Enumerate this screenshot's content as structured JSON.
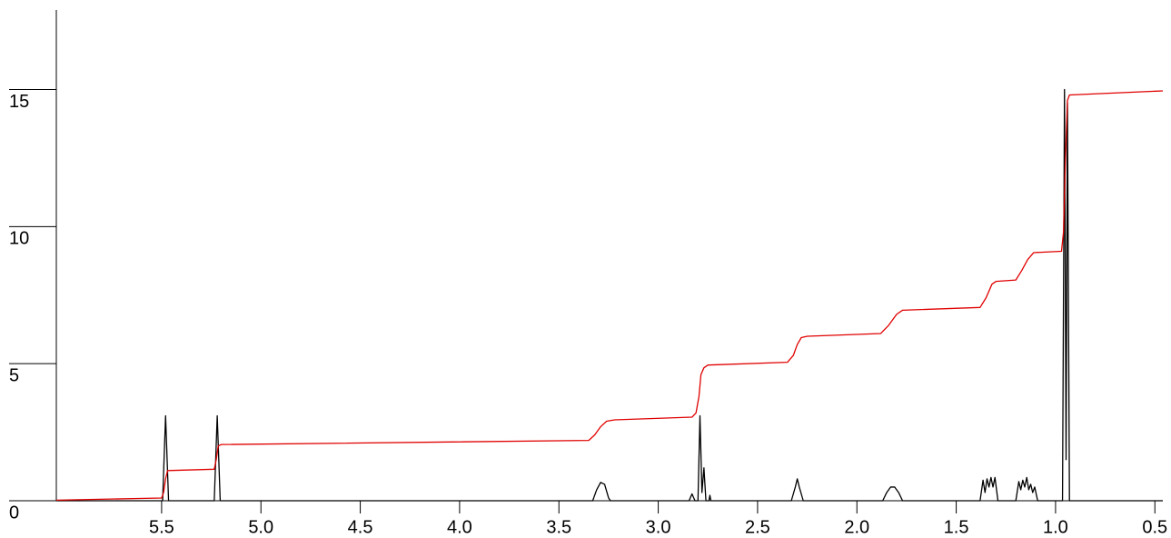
{
  "chart_data": {
    "type": "line",
    "xlim": [
      6.03,
      0.46
    ],
    "ylim": [
      0,
      17.9
    ],
    "xticks": [
      5.5,
      {
        "value": 5,
        "label": "5.0"
      },
      4.5,
      {
        "value": 4,
        "label": "4.0"
      },
      3.5,
      {
        "value": 3,
        "label": "3.0"
      },
      2.5,
      {
        "value": 2,
        "label": "2.0"
      },
      1.5,
      {
        "value": 1,
        "label": "1.0"
      },
      0.5
    ],
    "yticks": [
      0,
      5,
      10,
      15
    ],
    "series": [
      {
        "color": "#000000",
        "x": [
          6.03,
          5.495,
          5.48,
          5.465,
          5.235,
          5.22,
          5.205,
          3.33,
          3.31,
          3.29,
          3.27,
          3.25,
          3.24,
          2.845,
          2.83,
          2.815,
          2.8,
          2.79,
          2.78,
          2.77,
          2.76,
          2.745,
          2.74,
          2.735,
          2.33,
          2.31,
          2.3,
          2.29,
          2.27,
          1.87,
          1.85,
          1.83,
          1.81,
          1.79,
          1.77,
          1.38,
          1.365,
          1.355,
          1.345,
          1.335,
          1.325,
          1.315,
          1.305,
          1.29,
          1.2,
          1.185,
          1.175,
          1.165,
          1.155,
          1.145,
          1.135,
          1.125,
          1.115,
          1.105,
          1.09,
          0.965,
          0.955,
          0.947,
          0.94,
          0.93,
          0.46
        ],
        "values": [
          0,
          0,
          3.1,
          0,
          0,
          3.1,
          0,
          0,
          0.4,
          0.67,
          0.6,
          0.1,
          0,
          0,
          0.25,
          0,
          0,
          3.1,
          0.3,
          1.2,
          0,
          0,
          0.2,
          0,
          0,
          0.5,
          0.8,
          0.5,
          0,
          0,
          0.3,
          0.5,
          0.5,
          0.3,
          0,
          0,
          0.75,
          0.3,
          0.8,
          0.5,
          0.85,
          0.5,
          0.85,
          0,
          0,
          0.7,
          0.4,
          0.75,
          0.5,
          0.85,
          0.4,
          0.6,
          0.3,
          0.5,
          0,
          0,
          15,
          1.5,
          14.5,
          0,
          0
        ]
      },
      {
        "color": "#e00000",
        "x": [
          6.03,
          5.5,
          5.49,
          5.48,
          5.47,
          5.235,
          5.225,
          5.215,
          5.2,
          3.35,
          3.32,
          3.29,
          3.26,
          3.22,
          2.83,
          2.81,
          2.795,
          2.785,
          2.77,
          2.75,
          2.35,
          2.32,
          2.3,
          2.28,
          2.25,
          1.88,
          1.84,
          1.8,
          1.77,
          1.38,
          1.35,
          1.32,
          1.3,
          1.2,
          1.17,
          1.14,
          1.11,
          0.97,
          0.96,
          0.95,
          0.94,
          0.93,
          0.46
        ],
        "values": [
          0.02,
          0.1,
          0.3,
          0.8,
          1.1,
          1.15,
          1.5,
          2,
          2.05,
          2.2,
          2.4,
          2.7,
          2.9,
          2.95,
          3.05,
          3.2,
          3.8,
          4.6,
          4.85,
          4.95,
          5.05,
          5.3,
          5.7,
          5.95,
          6,
          6.1,
          6.4,
          6.8,
          6.95,
          7.05,
          7.4,
          7.9,
          8,
          8.05,
          8.4,
          8.8,
          9.05,
          9.1,
          9.8,
          12.5,
          14.6,
          14.8,
          14.95
        ]
      }
    ]
  }
}
